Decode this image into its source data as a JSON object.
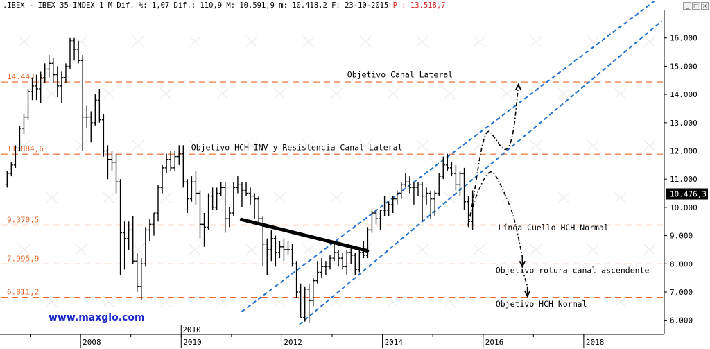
{
  "header": {
    "symbol": ".IBEX",
    "name": "IBEX 35 INDEX",
    "period": "1 M",
    "dif_pct_label": "Dif. %:",
    "dif_pct_value": "1,07",
    "dif_label": "Dif.:",
    "dif_value": "110,9",
    "max_label": "M:",
    "max_value": "10.591,9",
    "min_label": "m:",
    "min_value": "10.418,2",
    "date_label": "F:",
    "date_value": "23-10-2015",
    "p_label": "P :",
    "p_value": "13.518,7"
  },
  "window_buttons": {
    "minimize": "minimize-icon",
    "maximize": "maximize-icon",
    "close": "close-icon"
  },
  "watermark": "www.maxglo.com",
  "colors": {
    "candle": "#000000",
    "level_line": "#e8692a",
    "channel": "#1f6fd0",
    "projection": "#000000",
    "watermark": "#1a28c8",
    "last_price_bg": "#000000",
    "last_price_text": "#ffffff",
    "header_highlight": "#d02020"
  },
  "chart_data": {
    "type": "candlestick",
    "period": "monthly",
    "y_axis": {
      "side": "right",
      "range": [
        5500,
        17000
      ],
      "ticks": [
        6000,
        7000,
        8000,
        9000,
        10000,
        11000,
        12000,
        13000,
        14000,
        15000,
        16000
      ],
      "tick_labels": [
        "6.000",
        "7.000",
        "8.000",
        "9.000",
        "10.000",
        "11.000",
        "12.000",
        "13.000",
        "14.000",
        "15.000",
        "16.000"
      ]
    },
    "x_axis": {
      "range": [
        2006.4,
        2019.6
      ],
      "ticks": [
        2008,
        2010,
        2012,
        2014,
        2016,
        2018
      ],
      "tick_labels": [
        "2008",
        "2010",
        "2012",
        "2014",
        "2016",
        "2018"
      ],
      "extra_label": {
        "text": "2010",
        "x": 2010.0
      }
    },
    "grid": false,
    "last_price": {
      "value": 10476.3,
      "label": "10.476,3"
    },
    "horizontal_levels": [
      {
        "value": 14443.1,
        "label": "14.443,1"
      },
      {
        "value": 11884.6,
        "label": "11.884,6"
      },
      {
        "value": 9370.5,
        "label": "9.370,5"
      },
      {
        "value": 7995.9,
        "label": "7.995,9"
      },
      {
        "value": 6811.2,
        "label": "6.811,2"
      }
    ],
    "annotations": [
      {
        "text": "Objetivo Canal Lateral",
        "x": 2013.3,
        "y": 14600
      },
      {
        "text": "Objetivo HCH INV y Resistencia Canal Lateral",
        "x": 2010.2,
        "y": 12030
      },
      {
        "text": "Línea Cuello HCH Normal",
        "x": 2016.3,
        "y": 9180
      },
      {
        "text": "Objetivo rotura canal ascendente",
        "x": 2016.25,
        "y": 7680
      },
      {
        "text": "Objetivo HCH Normal",
        "x": 2016.25,
        "y": 6480
      }
    ],
    "channel_lines": [
      {
        "name": "upper",
        "x1": 2011.2,
        "y1": 6300,
        "x2": 2019.4,
        "y2": 17300
      },
      {
        "name": "lower",
        "x1": 2012.35,
        "y1": 5850,
        "x2": 2019.55,
        "y2": 16600
      }
    ],
    "trend_line": {
      "x1": 2011.2,
      "y1": 9570,
      "x2": 2013.7,
      "y2": 8460
    },
    "projections": [
      {
        "name": "hch-inverse-path",
        "points": [
          [
            2015.7,
            9350
          ],
          [
            2015.8,
            10200
          ],
          [
            2015.95,
            12000
          ],
          [
            2016.08,
            12800
          ],
          [
            2016.22,
            12500
          ],
          [
            2016.45,
            11900
          ],
          [
            2016.6,
            12500
          ],
          [
            2016.7,
            14300
          ]
        ],
        "arrow_to": [
          2016.7,
          14350
        ]
      },
      {
        "name": "hch-normal-path",
        "points": [
          [
            2015.7,
            9350
          ],
          [
            2015.85,
            10400
          ],
          [
            2016.1,
            11300
          ],
          [
            2016.25,
            11200
          ],
          [
            2016.55,
            10000
          ],
          [
            2016.65,
            9380
          ],
          [
            2016.78,
            8250
          ]
        ],
        "arrow_to": [
          2016.78,
          7900
        ]
      },
      {
        "name": "continuation-path",
        "points": [
          [
            2016.78,
            7800
          ],
          [
            2016.88,
            7200
          ]
        ],
        "arrow_to": [
          2016.88,
          6850
        ]
      }
    ],
    "series": [
      {
        "date": "2006-07",
        "open": 10800,
        "high": 11300,
        "low": 10700,
        "close": 11200
      },
      {
        "date": "2006-08",
        "open": 11200,
        "high": 11600,
        "low": 11100,
        "close": 11500
      },
      {
        "date": "2006-09",
        "open": 11500,
        "high": 12200,
        "low": 11400,
        "close": 12100
      },
      {
        "date": "2006-10",
        "open": 12100,
        "high": 12900,
        "low": 12000,
        "close": 12800
      },
      {
        "date": "2006-11",
        "open": 12800,
        "high": 13300,
        "low": 12600,
        "close": 13200
      },
      {
        "date": "2006-12",
        "open": 13200,
        "high": 14200,
        "low": 13100,
        "close": 14100
      },
      {
        "date": "2007-01",
        "open": 14100,
        "high": 14600,
        "low": 13800,
        "close": 14300
      },
      {
        "date": "2007-02",
        "open": 14300,
        "high": 14700,
        "low": 13800,
        "close": 14200
      },
      {
        "date": "2007-03",
        "open": 14200,
        "high": 14800,
        "low": 13700,
        "close": 14600
      },
      {
        "date": "2007-04",
        "open": 14600,
        "high": 15100,
        "low": 14400,
        "close": 14900
      },
      {
        "date": "2007-05",
        "open": 14900,
        "high": 15400,
        "low": 14600,
        "close": 15100
      },
      {
        "date": "2007-06",
        "open": 15100,
        "high": 15300,
        "low": 14400,
        "close": 14700
      },
      {
        "date": "2007-07",
        "open": 14700,
        "high": 15000,
        "low": 13900,
        "close": 14300
      },
      {
        "date": "2007-08",
        "open": 14300,
        "high": 14800,
        "low": 13700,
        "close": 14600
      },
      {
        "date": "2007-09",
        "open": 14600,
        "high": 15100,
        "low": 14400,
        "close": 15000
      },
      {
        "date": "2007-10",
        "open": 15000,
        "high": 16000,
        "low": 14900,
        "close": 15900
      },
      {
        "date": "2007-11",
        "open": 15900,
        "high": 16000,
        "low": 15200,
        "close": 15600
      },
      {
        "date": "2007-12",
        "open": 15600,
        "high": 15900,
        "low": 15100,
        "close": 15200
      },
      {
        "date": "2008-01",
        "open": 15200,
        "high": 15400,
        "low": 12000,
        "close": 13200
      },
      {
        "date": "2008-02",
        "open": 13200,
        "high": 13600,
        "low": 12800,
        "close": 13200
      },
      {
        "date": "2008-03",
        "open": 13200,
        "high": 13400,
        "low": 12300,
        "close": 13000
      },
      {
        "date": "2008-04",
        "open": 13000,
        "high": 14000,
        "low": 12900,
        "close": 13800
      },
      {
        "date": "2008-05",
        "open": 13800,
        "high": 14200,
        "low": 13000,
        "close": 13100
      },
      {
        "date": "2008-06",
        "open": 13100,
        "high": 13300,
        "low": 11800,
        "close": 12000
      },
      {
        "date": "2008-07",
        "open": 12000,
        "high": 12200,
        "low": 11000,
        "close": 11700
      },
      {
        "date": "2008-08",
        "open": 11700,
        "high": 12000,
        "low": 11300,
        "close": 11600
      },
      {
        "date": "2008-09",
        "open": 11600,
        "high": 11900,
        "low": 10500,
        "close": 10900
      },
      {
        "date": "2008-10",
        "open": 10900,
        "high": 11000,
        "low": 7600,
        "close": 9100
      },
      {
        "date": "2008-11",
        "open": 9100,
        "high": 9500,
        "low": 7800,
        "close": 8900
      },
      {
        "date": "2008-12",
        "open": 8900,
        "high": 9500,
        "low": 8500,
        "close": 9200
      },
      {
        "date": "2009-01",
        "open": 9200,
        "high": 9700,
        "low": 8000,
        "close": 8100
      },
      {
        "date": "2009-02",
        "open": 8100,
        "high": 8400,
        "low": 7000,
        "close": 7200
      },
      {
        "date": "2009-03",
        "open": 7200,
        "high": 8200,
        "low": 6700,
        "close": 8000
      },
      {
        "date": "2009-04",
        "open": 8000,
        "high": 9300,
        "low": 7900,
        "close": 9200
      },
      {
        "date": "2009-05",
        "open": 9200,
        "high": 9600,
        "low": 8800,
        "close": 9400
      },
      {
        "date": "2009-06",
        "open": 9400,
        "high": 9800,
        "low": 9000,
        "close": 9800
      },
      {
        "date": "2009-07",
        "open": 9800,
        "high": 10800,
        "low": 9500,
        "close": 10700
      },
      {
        "date": "2009-08",
        "open": 10700,
        "high": 11500,
        "low": 10500,
        "close": 11400
      },
      {
        "date": "2009-09",
        "open": 11400,
        "high": 11900,
        "low": 11200,
        "close": 11700
      },
      {
        "date": "2009-10",
        "open": 11700,
        "high": 12000,
        "low": 11300,
        "close": 11400
      },
      {
        "date": "2009-11",
        "open": 11400,
        "high": 12000,
        "low": 11300,
        "close": 11800
      },
      {
        "date": "2009-12",
        "open": 11800,
        "high": 12200,
        "low": 11500,
        "close": 11900
      },
      {
        "date": "2010-01",
        "open": 11900,
        "high": 12200,
        "low": 10700,
        "close": 10900
      },
      {
        "date": "2010-02",
        "open": 10900,
        "high": 11000,
        "low": 9800,
        "close": 10300
      },
      {
        "date": "2010-03",
        "open": 10300,
        "high": 11100,
        "low": 10200,
        "close": 10900
      },
      {
        "date": "2010-04",
        "open": 10900,
        "high": 11300,
        "low": 10100,
        "close": 10500
      },
      {
        "date": "2010-05",
        "open": 10500,
        "high": 10600,
        "low": 8900,
        "close": 9400
      },
      {
        "date": "2010-06",
        "open": 9400,
        "high": 9800,
        "low": 8600,
        "close": 9300
      },
      {
        "date": "2010-07",
        "open": 9300,
        "high": 10500,
        "low": 9200,
        "close": 10400
      },
      {
        "date": "2010-08",
        "open": 10400,
        "high": 10700,
        "low": 9900,
        "close": 10000
      },
      {
        "date": "2010-09",
        "open": 10000,
        "high": 10700,
        "low": 9900,
        "close": 10500
      },
      {
        "date": "2010-10",
        "open": 10500,
        "high": 10900,
        "low": 10400,
        "close": 10700
      },
      {
        "date": "2010-11",
        "open": 10700,
        "high": 10900,
        "low": 9100,
        "close": 9600
      },
      {
        "date": "2010-12",
        "open": 9600,
        "high": 10000,
        "low": 9300,
        "close": 9800
      },
      {
        "date": "2011-01",
        "open": 9800,
        "high": 10900,
        "low": 9700,
        "close": 10700
      },
      {
        "date": "2011-02",
        "open": 10700,
        "high": 11100,
        "low": 10500,
        "close": 10800
      },
      {
        "date": "2011-03",
        "open": 10800,
        "high": 10900,
        "low": 10000,
        "close": 10600
      },
      {
        "date": "2011-04",
        "open": 10600,
        "high": 10900,
        "low": 10400,
        "close": 10500
      },
      {
        "date": "2011-05",
        "open": 10500,
        "high": 10700,
        "low": 10100,
        "close": 10400
      },
      {
        "date": "2011-06",
        "open": 10400,
        "high": 10500,
        "low": 9600,
        "close": 10300
      },
      {
        "date": "2011-07",
        "open": 10300,
        "high": 10400,
        "low": 9400,
        "close": 9600
      },
      {
        "date": "2011-08",
        "open": 9600,
        "high": 9700,
        "low": 7900,
        "close": 8700
      },
      {
        "date": "2011-09",
        "open": 8700,
        "high": 8900,
        "low": 7600,
        "close": 8500
      },
      {
        "date": "2011-10",
        "open": 8500,
        "high": 9200,
        "low": 8100,
        "close": 8900
      },
      {
        "date": "2011-11",
        "open": 8900,
        "high": 9000,
        "low": 7900,
        "close": 8400
      },
      {
        "date": "2011-12",
        "open": 8400,
        "high": 8800,
        "low": 8200,
        "close": 8600
      },
      {
        "date": "2012-01",
        "open": 8600,
        "high": 8900,
        "low": 8100,
        "close": 8500
      },
      {
        "date": "2012-02",
        "open": 8500,
        "high": 8800,
        "low": 8300,
        "close": 8500
      },
      {
        "date": "2012-03",
        "open": 8500,
        "high": 8700,
        "low": 7900,
        "close": 8000
      },
      {
        "date": "2012-04",
        "open": 8000,
        "high": 8100,
        "low": 6800,
        "close": 7000
      },
      {
        "date": "2012-05",
        "open": 7000,
        "high": 7300,
        "low": 6100,
        "close": 6100
      },
      {
        "date": "2012-06",
        "open": 6100,
        "high": 7200,
        "low": 5950,
        "close": 7100
      },
      {
        "date": "2012-07",
        "open": 7100,
        "high": 7300,
        "low": 5900,
        "close": 6700
      },
      {
        "date": "2012-08",
        "open": 6700,
        "high": 7500,
        "low": 6500,
        "close": 7400
      },
      {
        "date": "2012-09",
        "open": 7400,
        "high": 8100,
        "low": 7300,
        "close": 7700
      },
      {
        "date": "2012-10",
        "open": 7700,
        "high": 8200,
        "low": 7500,
        "close": 7900
      },
      {
        "date": "2012-11",
        "open": 7900,
        "high": 8100,
        "low": 7600,
        "close": 7900
      },
      {
        "date": "2012-12",
        "open": 7900,
        "high": 8300,
        "low": 7800,
        "close": 8200
      },
      {
        "date": "2013-01",
        "open": 8200,
        "high": 8800,
        "low": 8100,
        "close": 8400
      },
      {
        "date": "2013-02",
        "open": 8400,
        "high": 8500,
        "low": 7900,
        "close": 8200
      },
      {
        "date": "2013-03",
        "open": 8200,
        "high": 8400,
        "low": 7800,
        "close": 7900
      },
      {
        "date": "2013-04",
        "open": 7900,
        "high": 8500,
        "low": 7600,
        "close": 8400
      },
      {
        "date": "2013-05",
        "open": 8400,
        "high": 8600,
        "low": 8000,
        "close": 8300
      },
      {
        "date": "2013-06",
        "open": 8300,
        "high": 8400,
        "low": 7600,
        "close": 7800
      },
      {
        "date": "2013-07",
        "open": 7800,
        "high": 8500,
        "low": 7700,
        "close": 8400
      },
      {
        "date": "2013-08",
        "open": 8400,
        "high": 8800,
        "low": 8200,
        "close": 8300
      },
      {
        "date": "2013-09",
        "open": 8300,
        "high": 9300,
        "low": 8200,
        "close": 9200
      },
      {
        "date": "2013-10",
        "open": 9200,
        "high": 9900,
        "low": 9100,
        "close": 9800
      },
      {
        "date": "2013-11",
        "open": 9800,
        "high": 9900,
        "low": 9400,
        "close": 9600
      },
      {
        "date": "2013-12",
        "open": 9600,
        "high": 9900,
        "low": 9200,
        "close": 9900
      },
      {
        "date": "2014-01",
        "open": 9900,
        "high": 10400,
        "low": 9700,
        "close": 9900
      },
      {
        "date": "2014-02",
        "open": 9900,
        "high": 10200,
        "low": 9700,
        "close": 10100
      },
      {
        "date": "2014-03",
        "open": 10100,
        "high": 10400,
        "low": 9800,
        "close": 10300
      },
      {
        "date": "2014-04",
        "open": 10300,
        "high": 10600,
        "low": 10100,
        "close": 10500
      },
      {
        "date": "2014-05",
        "open": 10500,
        "high": 10900,
        "low": 10300,
        "close": 10800
      },
      {
        "date": "2014-06",
        "open": 10800,
        "high": 11200,
        "low": 10700,
        "close": 10900
      },
      {
        "date": "2014-07",
        "open": 10900,
        "high": 11100,
        "low": 10500,
        "close": 10700
      },
      {
        "date": "2014-08",
        "open": 10700,
        "high": 10900,
        "low": 10100,
        "close": 10700
      },
      {
        "date": "2014-09",
        "open": 10700,
        "high": 10900,
        "low": 10400,
        "close": 10800
      },
      {
        "date": "2014-10",
        "open": 10800,
        "high": 10900,
        "low": 9500,
        "close": 10400
      },
      {
        "date": "2014-11",
        "open": 10400,
        "high": 10700,
        "low": 10100,
        "close": 10500
      },
      {
        "date": "2014-12",
        "open": 10500,
        "high": 10600,
        "low": 9600,
        "close": 10300
      },
      {
        "date": "2015-01",
        "open": 10300,
        "high": 10600,
        "low": 9700,
        "close": 10500
      },
      {
        "date": "2015-02",
        "open": 10500,
        "high": 11200,
        "low": 10400,
        "close": 11100
      },
      {
        "date": "2015-03",
        "open": 11100,
        "high": 11800,
        "low": 11000,
        "close": 11500
      },
      {
        "date": "2015-04",
        "open": 11500,
        "high": 11900,
        "low": 11300,
        "close": 11400
      },
      {
        "date": "2015-05",
        "open": 11400,
        "high": 11600,
        "low": 11100,
        "close": 11200
      },
      {
        "date": "2015-06",
        "open": 11200,
        "high": 11500,
        "low": 10600,
        "close": 10800
      },
      {
        "date": "2015-07",
        "open": 10800,
        "high": 11300,
        "low": 10400,
        "close": 11200
      },
      {
        "date": "2015-08",
        "open": 11200,
        "high": 11400,
        "low": 9900,
        "close": 10200
      },
      {
        "date": "2015-09",
        "open": 10200,
        "high": 10400,
        "low": 9300,
        "close": 9500
      },
      {
        "date": "2015-10",
        "open": 9500,
        "high": 10600,
        "low": 9200,
        "close": 10476
      }
    ]
  }
}
